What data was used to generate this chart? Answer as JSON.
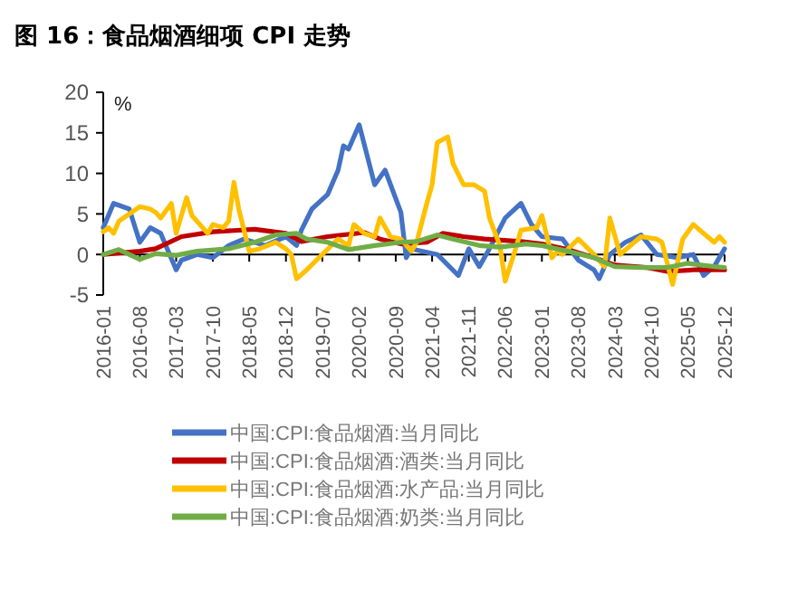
{
  "chart_data": {
    "type": "line",
    "title": "图 16：食品烟酒细项 CPI 走势",
    "ylabel": "%",
    "xlim": [
      "2016-01",
      "2025-12"
    ],
    "xticks": [
      "2016-01",
      "2016-08",
      "2017-03",
      "2017-10",
      "2018-05",
      "2018-12",
      "2019-07",
      "2020-02",
      "2020-09",
      "2021-04",
      "2021-11",
      "2022-06",
      "2023-01",
      "2023-08",
      "2024-03",
      "2024-10",
      "2025-05",
      "2025-12"
    ],
    "ylim": [
      -5,
      20
    ],
    "yticks": [
      -5,
      0,
      5,
      10,
      15,
      20
    ],
    "grid": false,
    "legend": "bottom",
    "line_style": "solid",
    "series": [
      {
        "name": "中国:CPI:食品烟酒:当月同比",
        "color": "#4472c4",
        "x": [
          "2016-01",
          "2016-03",
          "2016-06",
          "2016-08",
          "2016-10",
          "2016-12",
          "2017-03",
          "2017-04",
          "2017-07",
          "2017-10",
          "2018-01",
          "2018-04",
          "2018-08",
          "2018-12",
          "2019-02",
          "2019-03",
          "2019-05",
          "2019-08",
          "2019-10",
          "2019-11",
          "2019-12",
          "2020-02",
          "2020-05",
          "2020-07",
          "2020-10",
          "2020-11",
          "2020-12",
          "2021-05",
          "2021-09",
          "2021-11",
          "2022-01",
          "2022-03",
          "2022-06",
          "2022-09",
          "2022-11",
          "2023-01",
          "2023-05",
          "2023-08",
          "2023-11",
          "2023-12",
          "2024-02",
          "2024-05",
          "2024-08",
          "2024-11",
          "2025-03",
          "2025-06",
          "2025-08",
          "2025-10",
          "2025-12"
        ],
        "values": [
          3.3,
          6.3,
          5.6,
          1.5,
          3.3,
          2.6,
          -1.9,
          -0.7,
          0,
          -0.4,
          1.1,
          1.9,
          1.1,
          2.2,
          1.1,
          3,
          5.6,
          7.4,
          10.4,
          13.4,
          13,
          16,
          8.6,
          10.4,
          5.2,
          -0.4,
          0.7,
          0,
          -2.6,
          0.7,
          -1.5,
          0.7,
          4.5,
          6.3,
          3.7,
          2.2,
          1.9,
          -0.7,
          -1.9,
          -3,
          0,
          1.5,
          2.4,
          0,
          -0.4,
          0,
          -2.6,
          -1.5,
          0.7
        ]
      },
      {
        "name": "中国:CPI:食品烟酒:酒类:当月同比",
        "color": "#c00000",
        "x": [
          "2016-01",
          "2016-08",
          "2016-11",
          "2017-04",
          "2017-10",
          "2018-06",
          "2018-12",
          "2019-03",
          "2019-08",
          "2020-03",
          "2020-06",
          "2020-10",
          "2021-03",
          "2021-06",
          "2021-10",
          "2022-02",
          "2022-09",
          "2023-01",
          "2023-06",
          "2023-11",
          "2024-03",
          "2024-09",
          "2025-01",
          "2025-06",
          "2025-12"
        ],
        "values": [
          0,
          0.4,
          0.7,
          2.2,
          2.8,
          3.1,
          2.6,
          1.6,
          2.2,
          2.7,
          1.9,
          1.3,
          1.5,
          2.6,
          2.2,
          1.9,
          1.6,
          1.3,
          0.6,
          -0.4,
          -1.3,
          -1.6,
          -2.1,
          -1.9,
          -1.9
        ]
      },
      {
        "name": "中国:CPI:食品烟酒:水产品:当月同比",
        "color": "#ffc000",
        "x": [
          "2016-01",
          "2016-02",
          "2016-03",
          "2016-04",
          "2016-08",
          "2016-10",
          "2016-11",
          "2016-12",
          "2017-02",
          "2017-03",
          "2017-05",
          "2017-06",
          "2017-09",
          "2017-10",
          "2017-12",
          "2018-01",
          "2018-02",
          "2018-03",
          "2018-05",
          "2018-07",
          "2018-10",
          "2018-12",
          "2019-01",
          "2019-02",
          "2019-04",
          "2019-07",
          "2019-10",
          "2019-12",
          "2020-01",
          "2020-03",
          "2020-05",
          "2020-06",
          "2020-08",
          "2020-10",
          "2020-12",
          "2021-01",
          "2021-03",
          "2021-04",
          "2021-05",
          "2021-07",
          "2021-08",
          "2021-10",
          "2021-12",
          "2022-02",
          "2022-03",
          "2022-05",
          "2022-06",
          "2022-08",
          "2022-09",
          "2022-12",
          "2023-01",
          "2023-03",
          "2023-04",
          "2023-05",
          "2023-08",
          "2023-11",
          "2024-01",
          "2024-02",
          "2024-04",
          "2024-06",
          "2024-08",
          "2024-11",
          "2024-12",
          "2025-02",
          "2025-04",
          "2025-06",
          "2025-08",
          "2025-10",
          "2025-11",
          "2025-12"
        ],
        "values": [
          2.8,
          3.3,
          2.6,
          4.1,
          5.9,
          5.6,
          5.2,
          4.5,
          6.3,
          2.6,
          7,
          4.8,
          2.6,
          3.7,
          3.3,
          4.1,
          8.9,
          5.6,
          0.4,
          0.7,
          1.5,
          0.7,
          0,
          -3,
          -1.9,
          0,
          1.9,
          1.1,
          3.7,
          2.6,
          2.2,
          4.5,
          2.2,
          1.9,
          0.4,
          1.5,
          6.3,
          8.6,
          13.8,
          14.5,
          11.2,
          8.6,
          8.6,
          7.8,
          4.5,
          1.1,
          -3.3,
          0.7,
          3,
          3.3,
          4.8,
          -0.4,
          0.4,
          0,
          1.9,
          0,
          -1.5,
          4.5,
          0,
          1.1,
          2.2,
          1.9,
          1.5,
          -3.7,
          1.9,
          3.7,
          2.6,
          1.5,
          2.2,
          1.5
        ]
      },
      {
        "name": "中国:CPI:食品烟酒:奶类:当月同比",
        "color": "#70ad47",
        "x": [
          "2016-01",
          "2016-04",
          "2016-08",
          "2016-11",
          "2017-03",
          "2017-07",
          "2018-01",
          "2018-06",
          "2018-10",
          "2019-02",
          "2019-04",
          "2019-08",
          "2019-12",
          "2020-05",
          "2020-10",
          "2021-01",
          "2021-05",
          "2021-08",
          "2022-01",
          "2022-05",
          "2022-10",
          "2023-01",
          "2023-06",
          "2023-11",
          "2024-03",
          "2024-08",
          "2025-01",
          "2025-05",
          "2025-10",
          "2025-12"
        ],
        "values": [
          0,
          0.6,
          -0.6,
          0.1,
          -0.1,
          0.4,
          0.7,
          1.5,
          2.4,
          2.6,
          1.9,
          1.5,
          0.6,
          1.1,
          1.5,
          1.6,
          2.4,
          1.9,
          1.1,
          0.9,
          1.3,
          1.1,
          0.4,
          -0.4,
          -1.5,
          -1.6,
          -1.6,
          -1.1,
          -1.5,
          -1.6
        ]
      }
    ]
  }
}
